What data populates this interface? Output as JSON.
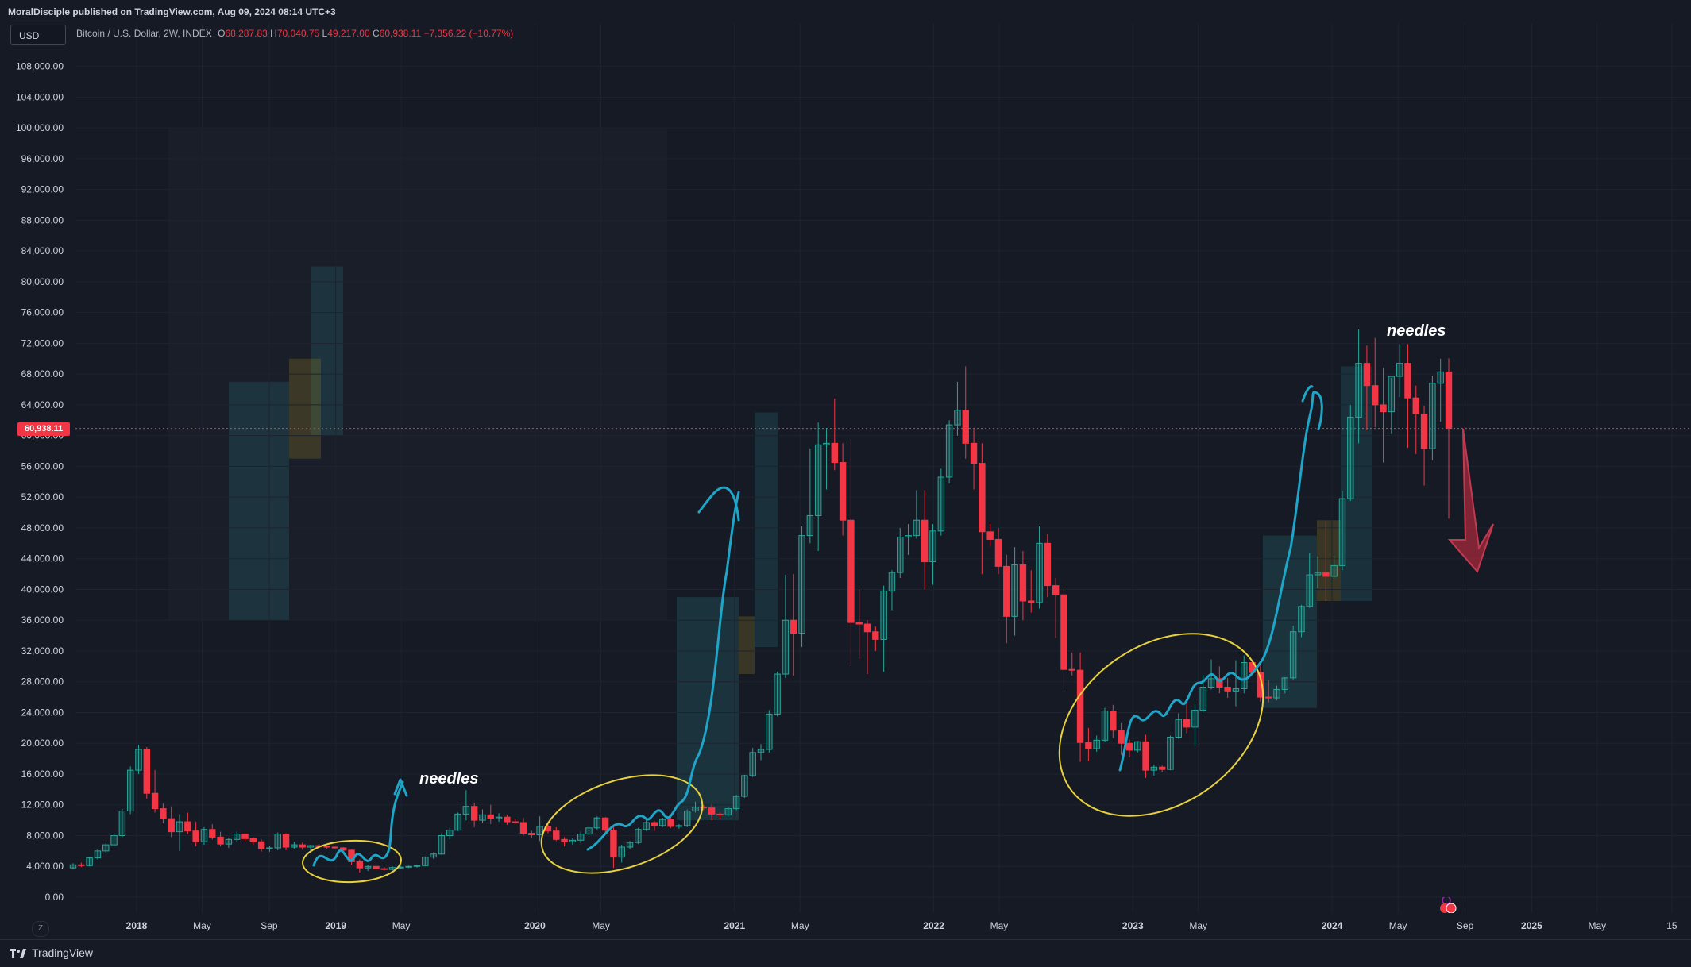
{
  "header": {
    "published": "MoralDisciple published on TradingView.com, Aug 09, 2024 08:14 UTC+3"
  },
  "toolbar": {
    "currency": "USD"
  },
  "legend": {
    "title": "Bitcoin / U.S. Dollar, 2W, INDEX",
    "open_label": "O",
    "open": "68,287.83",
    "high_label": "H",
    "high": "70,040.75",
    "low_label": "L",
    "low": "49,217.00",
    "close_label": "C",
    "close": "60,938.11",
    "change": "−7,356.22 (−10.77%)"
  },
  "price_tag": "60,938.11",
  "annotations": {
    "needles_1": "needles",
    "needles_2": "needles"
  },
  "footer": {
    "brand": "TradingView"
  },
  "colors": {
    "up": "#26a69a",
    "down": "#f23645",
    "background": "#161a25",
    "ellipse": "#e8d23c",
    "line": "#1ea5c8",
    "arrow": "#a52a3c"
  },
  "chart_data": {
    "type": "candlestick",
    "ylim": [
      0,
      108000
    ],
    "yticks": [
      "108,000.00",
      "104,000.00",
      "100,000.00",
      "96,000.00",
      "92,000.00",
      "88,000.00",
      "84,000.00",
      "80,000.00",
      "76,000.00",
      "72,000.00",
      "68,000.00",
      "64,000.00",
      "60,000.00",
      "56,000.00",
      "52,000.00",
      "48,000.00",
      "44,000.00",
      "40,000.00",
      "36,000.00",
      "32,000.00",
      "28,000.00",
      "24,000.00",
      "20,000.00",
      "16,000.00",
      "12,000.00",
      "8,000.00",
      "4,000.00",
      "0.00"
    ],
    "ytick_values": [
      108000,
      104000,
      100000,
      96000,
      92000,
      88000,
      84000,
      80000,
      76000,
      72000,
      68000,
      64000,
      60000,
      56000,
      52000,
      48000,
      44000,
      40000,
      36000,
      32000,
      28000,
      24000,
      20000,
      16000,
      12000,
      8000,
      4000,
      0
    ],
    "xticks": [
      {
        "label": "2018",
        "date": "2018-01-01"
      },
      {
        "label": "May",
        "date": "2018-05-01"
      },
      {
        "label": "Sep",
        "date": "2018-09-01"
      },
      {
        "label": "2019",
        "date": "2019-01-01"
      },
      {
        "label": "May",
        "date": "2019-05-01"
      },
      {
        "label": "2020",
        "date": "2020-01-01"
      },
      {
        "label": "May",
        "date": "2020-05-01"
      },
      {
        "label": "2021",
        "date": "2021-01-01"
      },
      {
        "label": "May",
        "date": "2021-05-01"
      },
      {
        "label": "2022",
        "date": "2022-01-01"
      },
      {
        "label": "May",
        "date": "2022-05-01"
      },
      {
        "label": "2023",
        "date": "2023-01-01"
      },
      {
        "label": "May",
        "date": "2023-05-01"
      },
      {
        "label": "2024",
        "date": "2024-01-01"
      },
      {
        "label": "May",
        "date": "2024-05-01"
      },
      {
        "label": "Sep",
        "date": "2024-09-01"
      },
      {
        "label": "2025",
        "date": "2025-01-01"
      },
      {
        "label": "May",
        "date": "2025-05-01"
      },
      {
        "label": "15",
        "date": "2025-09-15"
      }
    ],
    "last_price": 60938.11,
    "series": [
      {
        "interval": "2W",
        "ohlc": [
          [
            3800,
            4400,
            3600,
            4200
          ],
          [
            4200,
            4500,
            3900,
            4100
          ],
          [
            4100,
            5200,
            4000,
            5100
          ],
          [
            5100,
            6200,
            4900,
            6000
          ],
          [
            6000,
            7000,
            5800,
            6800
          ],
          [
            6800,
            8200,
            6600,
            8000
          ],
          [
            8000,
            11500,
            7800,
            11200
          ],
          [
            11200,
            17000,
            10800,
            16500
          ],
          [
            16500,
            19800,
            16000,
            19200
          ],
          [
            19200,
            19500,
            12800,
            13500
          ],
          [
            13500,
            16500,
            11000,
            11500
          ],
          [
            11500,
            12200,
            9600,
            10200
          ],
          [
            10200,
            11800,
            7800,
            8500
          ],
          [
            8500,
            10800,
            6000,
            9800
          ],
          [
            9800,
            11000,
            8200,
            8600
          ],
          [
            8600,
            9800,
            6600,
            7200
          ],
          [
            7200,
            9100,
            6800,
            8800
          ],
          [
            8800,
            9500,
            7500,
            7800
          ],
          [
            7800,
            8500,
            6600,
            6900
          ],
          [
            6900,
            7700,
            6400,
            7500
          ],
          [
            7500,
            8500,
            7200,
            8200
          ],
          [
            8200,
            8300,
            7300,
            7600
          ],
          [
            7600,
            7800,
            6800,
            7200
          ],
          [
            7200,
            7500,
            5900,
            6300
          ],
          [
            6300,
            6700,
            5900,
            6400
          ],
          [
            6400,
            8400,
            6100,
            8200
          ],
          [
            8200,
            8300,
            6100,
            6500
          ],
          [
            6500,
            7200,
            6300,
            6800
          ],
          [
            6800,
            7100,
            6200,
            6500
          ],
          [
            6500,
            6800,
            6100,
            6700
          ],
          [
            6700,
            6900,
            6400,
            6600
          ],
          [
            6600,
            6700,
            6300,
            6500
          ],
          [
            6500,
            6600,
            6300,
            6400
          ],
          [
            6400,
            6500,
            5900,
            6100
          ],
          [
            6100,
            6200,
            4200,
            4600
          ],
          [
            4600,
            4900,
            3200,
            3800
          ],
          [
            3800,
            4200,
            3400,
            4000
          ],
          [
            4000,
            4100,
            3500,
            3700
          ],
          [
            3700,
            3900,
            3400,
            3600
          ],
          [
            3600,
            4000,
            3500,
            3850
          ],
          [
            3850,
            4100,
            3700,
            3900
          ],
          [
            3900,
            4100,
            3800,
            4000
          ],
          [
            4000,
            4200,
            3850,
            4100
          ],
          [
            4100,
            5300,
            4000,
            5200
          ],
          [
            5200,
            5800,
            5000,
            5600
          ],
          [
            5600,
            8300,
            5500,
            8000
          ],
          [
            8000,
            9000,
            7500,
            8700
          ],
          [
            8700,
            11000,
            8600,
            10800
          ],
          [
            10800,
            13900,
            10000,
            11800
          ],
          [
            11800,
            12300,
            9100,
            10000
          ],
          [
            10000,
            11400,
            9700,
            10700
          ],
          [
            10700,
            12000,
            9500,
            10200
          ],
          [
            10200,
            10900,
            9800,
            10400
          ],
          [
            10400,
            10700,
            9400,
            9800
          ],
          [
            9800,
            10200,
            9500,
            9700
          ],
          [
            9700,
            10300,
            8000,
            8300
          ],
          [
            8300,
            8600,
            7700,
            8100
          ],
          [
            8100,
            10500,
            7300,
            9200
          ],
          [
            9200,
            9500,
            8300,
            8600
          ],
          [
            8600,
            9100,
            7300,
            7500
          ],
          [
            7500,
            7800,
            6600,
            7200
          ],
          [
            7200,
            7700,
            6800,
            7400
          ],
          [
            7400,
            8500,
            7000,
            8200
          ],
          [
            8200,
            9200,
            8000,
            9000
          ],
          [
            9000,
            10500,
            8800,
            10300
          ],
          [
            10300,
            10400,
            8500,
            8700
          ],
          [
            8700,
            9200,
            3800,
            5200
          ],
          [
            5200,
            6800,
            4500,
            6500
          ],
          [
            6500,
            7300,
            6200,
            7100
          ],
          [
            7100,
            9000,
            6900,
            8800
          ],
          [
            8800,
            10000,
            8600,
            9700
          ],
          [
            9700,
            9900,
            8600,
            9300
          ],
          [
            9300,
            10300,
            9100,
            10100
          ],
          [
            10100,
            10400,
            9000,
            9200
          ],
          [
            9200,
            9500,
            8900,
            9300
          ],
          [
            9300,
            11400,
            9100,
            11200
          ],
          [
            11200,
            12400,
            11000,
            11700
          ],
          [
            11700,
            12000,
            11300,
            11600
          ],
          [
            11600,
            12100,
            10000,
            10800
          ],
          [
            10800,
            11000,
            10200,
            10700
          ],
          [
            10700,
            11700,
            10500,
            11500
          ],
          [
            11500,
            13300,
            11300,
            13100
          ],
          [
            13100,
            15900,
            12900,
            15800
          ],
          [
            15800,
            19400,
            15600,
            18800
          ],
          [
            18800,
            19900,
            17800,
            19200
          ],
          [
            19200,
            24300,
            18800,
            23800
          ],
          [
            23800,
            29300,
            23500,
            29000
          ],
          [
            29000,
            41900,
            28500,
            36000
          ],
          [
            36000,
            42000,
            28800,
            34300
          ],
          [
            34300,
            48200,
            32500,
            47000
          ],
          [
            47000,
            58300,
            46000,
            49600
          ],
          [
            49600,
            61700,
            45000,
            58800
          ],
          [
            58800,
            61000,
            53000,
            59000
          ],
          [
            59000,
            64800,
            55500,
            56500
          ],
          [
            56500,
            59000,
            47000,
            49000
          ],
          [
            49000,
            59500,
            30000,
            35700
          ],
          [
            35700,
            40000,
            31000,
            35500
          ],
          [
            35500,
            36000,
            29000,
            34500
          ],
          [
            34500,
            35200,
            32000,
            33500
          ],
          [
            33500,
            40500,
            29300,
            39800
          ],
          [
            39800,
            42500,
            37300,
            42200
          ],
          [
            42200,
            48000,
            41500,
            46800
          ],
          [
            46800,
            48500,
            44500,
            47000
          ],
          [
            47000,
            52900,
            46600,
            49000
          ],
          [
            49000,
            52900,
            40000,
            43600
          ],
          [
            43600,
            48500,
            40600,
            47600
          ],
          [
            47600,
            55700,
            47000,
            54600
          ],
          [
            54600,
            62000,
            53800,
            61400
          ],
          [
            61400,
            67000,
            60000,
            63300
          ],
          [
            63300,
            69000,
            57000,
            59000
          ],
          [
            59000,
            61000,
            53000,
            56400
          ],
          [
            56400,
            59000,
            42000,
            47500
          ],
          [
            47500,
            48500,
            45600,
            46500
          ],
          [
            46500,
            48000,
            42000,
            43000
          ],
          [
            43000,
            44500,
            33000,
            36500
          ],
          [
            36500,
            45500,
            34000,
            43200
          ],
          [
            43200,
            45000,
            36000,
            38500
          ],
          [
            38500,
            42500,
            37000,
            38300
          ],
          [
            38300,
            48200,
            37500,
            46000
          ],
          [
            46000,
            47200,
            39000,
            40500
          ],
          [
            40500,
            41500,
            33700,
            39300
          ],
          [
            39300,
            40000,
            26700,
            29600
          ],
          [
            29600,
            31800,
            28800,
            29500
          ],
          [
            29500,
            31800,
            17600,
            20100
          ],
          [
            20100,
            22000,
            17700,
            19300
          ],
          [
            19300,
            21000,
            18900,
            20400
          ],
          [
            20400,
            24600,
            20200,
            24200
          ],
          [
            24200,
            25000,
            20700,
            21700
          ],
          [
            21700,
            22600,
            18500,
            20000
          ],
          [
            20000,
            20500,
            18200,
            19100
          ],
          [
            19100,
            20300,
            18800,
            20200
          ],
          [
            20200,
            21100,
            15500,
            16500
          ],
          [
            16500,
            17200,
            15800,
            16900
          ],
          [
            16900,
            17100,
            16300,
            16600
          ],
          [
            16600,
            21000,
            16500,
            20800
          ],
          [
            20800,
            23900,
            20600,
            23100
          ],
          [
            23100,
            25200,
            21300,
            22100
          ],
          [
            22100,
            25100,
            19600,
            24300
          ],
          [
            24300,
            28900,
            24000,
            27300
          ],
          [
            27300,
            30900,
            27000,
            28400
          ],
          [
            28400,
            30000,
            26500,
            27300
          ],
          [
            27300,
            28500,
            25900,
            26800
          ],
          [
            26800,
            30800,
            24800,
            27100
          ],
          [
            27100,
            31400,
            26500,
            30500
          ],
          [
            30500,
            30800,
            29000,
            29200
          ],
          [
            29200,
            30300,
            25400,
            26000
          ],
          [
            26000,
            28200,
            25300,
            25900
          ],
          [
            25900,
            27500,
            25600,
            27000
          ],
          [
            27000,
            28600,
            26500,
            28500
          ],
          [
            28500,
            35300,
            28300,
            34500
          ],
          [
            34500,
            38000,
            33800,
            37800
          ],
          [
            37800,
            44700,
            37600,
            41900
          ],
          [
            41900,
            44300,
            40200,
            42200
          ],
          [
            42200,
            48900,
            38500,
            41700
          ],
          [
            41700,
            44400,
            41400,
            43100
          ],
          [
            43100,
            52800,
            42500,
            51800
          ],
          [
            51800,
            64000,
            51500,
            62400
          ],
          [
            62400,
            73800,
            59000,
            69400
          ],
          [
            69400,
            71700,
            60800,
            66500
          ],
          [
            66500,
            72700,
            61100,
            64000
          ],
          [
            64000,
            68800,
            56500,
            63100
          ],
          [
            63100,
            67500,
            60200,
            67700
          ],
          [
            67700,
            71900,
            65000,
            69400
          ],
          [
            69400,
            71900,
            58400,
            64900
          ],
          [
            64900,
            66500,
            57600,
            62800
          ],
          [
            62800,
            63900,
            53500,
            58300
          ],
          [
            58300,
            67800,
            56800,
            66800
          ],
          [
            66800,
            70000,
            61800,
            68287
          ],
          [
            68287,
            70040,
            49217,
            60938
          ]
        ]
      }
    ],
    "notes": [
      "needles",
      "needles"
    ]
  }
}
